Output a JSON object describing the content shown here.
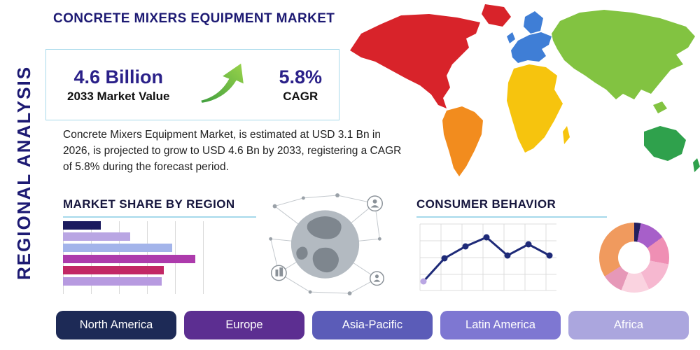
{
  "title": "CONCRETE MIXERS EQUIPMENT MARKET",
  "side_label": "REGIONAL ANALYSIS",
  "stats": {
    "value": "4.6 Billion",
    "value_label": "2033 Market Value",
    "cagr": "5.8%",
    "cagr_label": "CAGR"
  },
  "description": "Concrete Mixers Equipment Market, is estimated at USD 3.1 Bn in 2026, is projected to grow to USD 4.6 Bn by 2033, registering a CAGR of 5.8% during the forecast period.",
  "sections": {
    "market_share": "MARKET SHARE BY REGION",
    "consumer_behavior": "CONSUMER BEHAVIOR"
  },
  "accent_colors": {
    "navy": "#1d1a73",
    "underline_blue": "#a6d9ea",
    "arrow_green": "#5cb649"
  },
  "region_buttons": [
    {
      "label": "North America",
      "color": "#1d2a56"
    },
    {
      "label": "Europe",
      "color": "#5c2e91"
    },
    {
      "label": "Asia-Pacific",
      "color": "#5b5cb8"
    },
    {
      "label": "Latin America",
      "color": "#7e77d2"
    },
    {
      "label": "Africa",
      "color": "#aba6de"
    }
  ],
  "map_colors": {
    "north-america": "#d8232a",
    "greenland": "#d8232a",
    "south-america": "#f28c1e",
    "europe": "#3f7ed6",
    "europe-scandinavia": "#3f7ed6",
    "europe-uk": "#3f7ed6",
    "africa": "#f6c40e",
    "madagascar": "#f6c40e",
    "asia": "#82c341",
    "asia-islands": "#82c341",
    "australia": "#2fa14c",
    "new-zealand": "#2fa14c"
  },
  "chart_data": [
    {
      "type": "bar",
      "title": "MARKET SHARE BY REGION",
      "orientation": "horizontal",
      "values": [
        18,
        32,
        52,
        63,
        48,
        47
      ],
      "unit": "percent (estimated from bar lengths; no axis labels shown)",
      "colors": [
        "#1b1b5e",
        "#b9a6e3",
        "#a3b4ea",
        "#ad3bac",
        "#c22765",
        "#b79ae0"
      ],
      "grid": true,
      "note": "category labels not shown in image"
    },
    {
      "type": "line",
      "title": "CONSUMER BEHAVIOR",
      "x": [
        1,
        2,
        3,
        4,
        5,
        6,
        7
      ],
      "values": [
        13,
        46,
        63,
        76,
        50,
        66,
        50
      ],
      "unit": "estimated from plot; no axis labels shown",
      "color": "#1e2a78",
      "first_point_color": "#b9a6e3",
      "grid": true
    },
    {
      "type": "pie",
      "donut": true,
      "title": "",
      "unit": "percent (estimated; no labels shown)",
      "segments": [
        {
          "color": "#23205e",
          "value": 3
        },
        {
          "color": "#a75fc9",
          "value": 12
        },
        {
          "color": "#ef8fb4",
          "value": 13
        },
        {
          "color": "#f6b8d0",
          "value": 15
        },
        {
          "color": "#fad3e0",
          "value": 13
        },
        {
          "color": "#e698b8",
          "value": 10
        },
        {
          "color": "#f09a5e",
          "value": 34
        }
      ]
    }
  ]
}
